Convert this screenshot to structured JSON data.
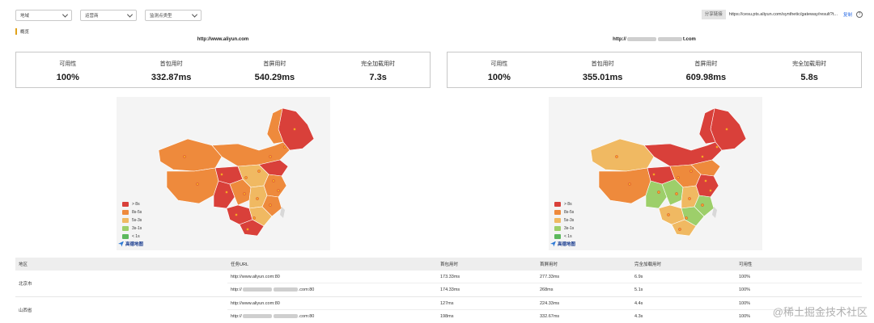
{
  "filters": [
    {
      "label": "地域"
    },
    {
      "label": "运营商"
    },
    {
      "label": "监测点类型"
    }
  ],
  "share": {
    "label": "分享链接",
    "url": "https://cesu.pts.aliyun.com/synthetic/gateway/result?t...",
    "copy": "复制",
    "help": "?"
  },
  "section_title": "概览",
  "panels": [
    {
      "url": "http://www.aliyun.com",
      "metrics": [
        {
          "label": "可用性",
          "value": "100%"
        },
        {
          "label": "首包用时",
          "value": "332.87ms"
        },
        {
          "label": "首屏用时",
          "value": "540.29ms"
        },
        {
          "label": "完全加载用时",
          "value": "7.3s"
        }
      ]
    },
    {
      "url_prefix": "http://",
      "url_suffix": "t.com",
      "metrics": [
        {
          "label": "可用性",
          "value": "100%"
        },
        {
          "label": "首包用时",
          "value": "355.01ms"
        },
        {
          "label": "首屏用时",
          "value": "609.98ms"
        },
        {
          "label": "完全加载用时",
          "value": "5.8s"
        }
      ]
    }
  ],
  "legend": [
    {
      "label": "> 8s",
      "color": "#d9403a"
    },
    {
      "label": "8s-5s",
      "color": "#ee8a3c"
    },
    {
      "label": "5s-3s",
      "color": "#f0b962"
    },
    {
      "label": "3s-1s",
      "color": "#9dcf6a"
    },
    {
      "label": "< 1s",
      "color": "#5cb85c"
    }
  ],
  "map_brand": "高德地图",
  "table": {
    "headers": [
      "地区",
      "任务URL",
      "首包用时",
      "首屏用时",
      "完全加载用时",
      "可用性"
    ],
    "groups": [
      {
        "region": "北京市",
        "rows": [
          {
            "url": "http://www.aliyun.com:80",
            "first_packet": "173.33ms",
            "first_screen": "277.33ms",
            "full_load": "6.9s",
            "availability": "100%"
          },
          {
            "url_prefix": "http://",
            "url_suffix": ".com:80",
            "first_packet": "174.33ms",
            "first_screen": "268ms",
            "full_load": "5.1s",
            "availability": "100%"
          }
        ]
      },
      {
        "region": "山西省",
        "rows": [
          {
            "url": "http://www.aliyun.com:80",
            "first_packet": "127ms",
            "first_screen": "224.33ms",
            "full_load": "4.4s",
            "availability": "100%"
          },
          {
            "url_prefix": "http://",
            "url_suffix": ".com:80",
            "first_packet": "198ms",
            "first_screen": "332.67ms",
            "full_load": "4.3s",
            "availability": "100%"
          }
        ]
      }
    ]
  },
  "watermark": "@稀土掘金技术社区"
}
